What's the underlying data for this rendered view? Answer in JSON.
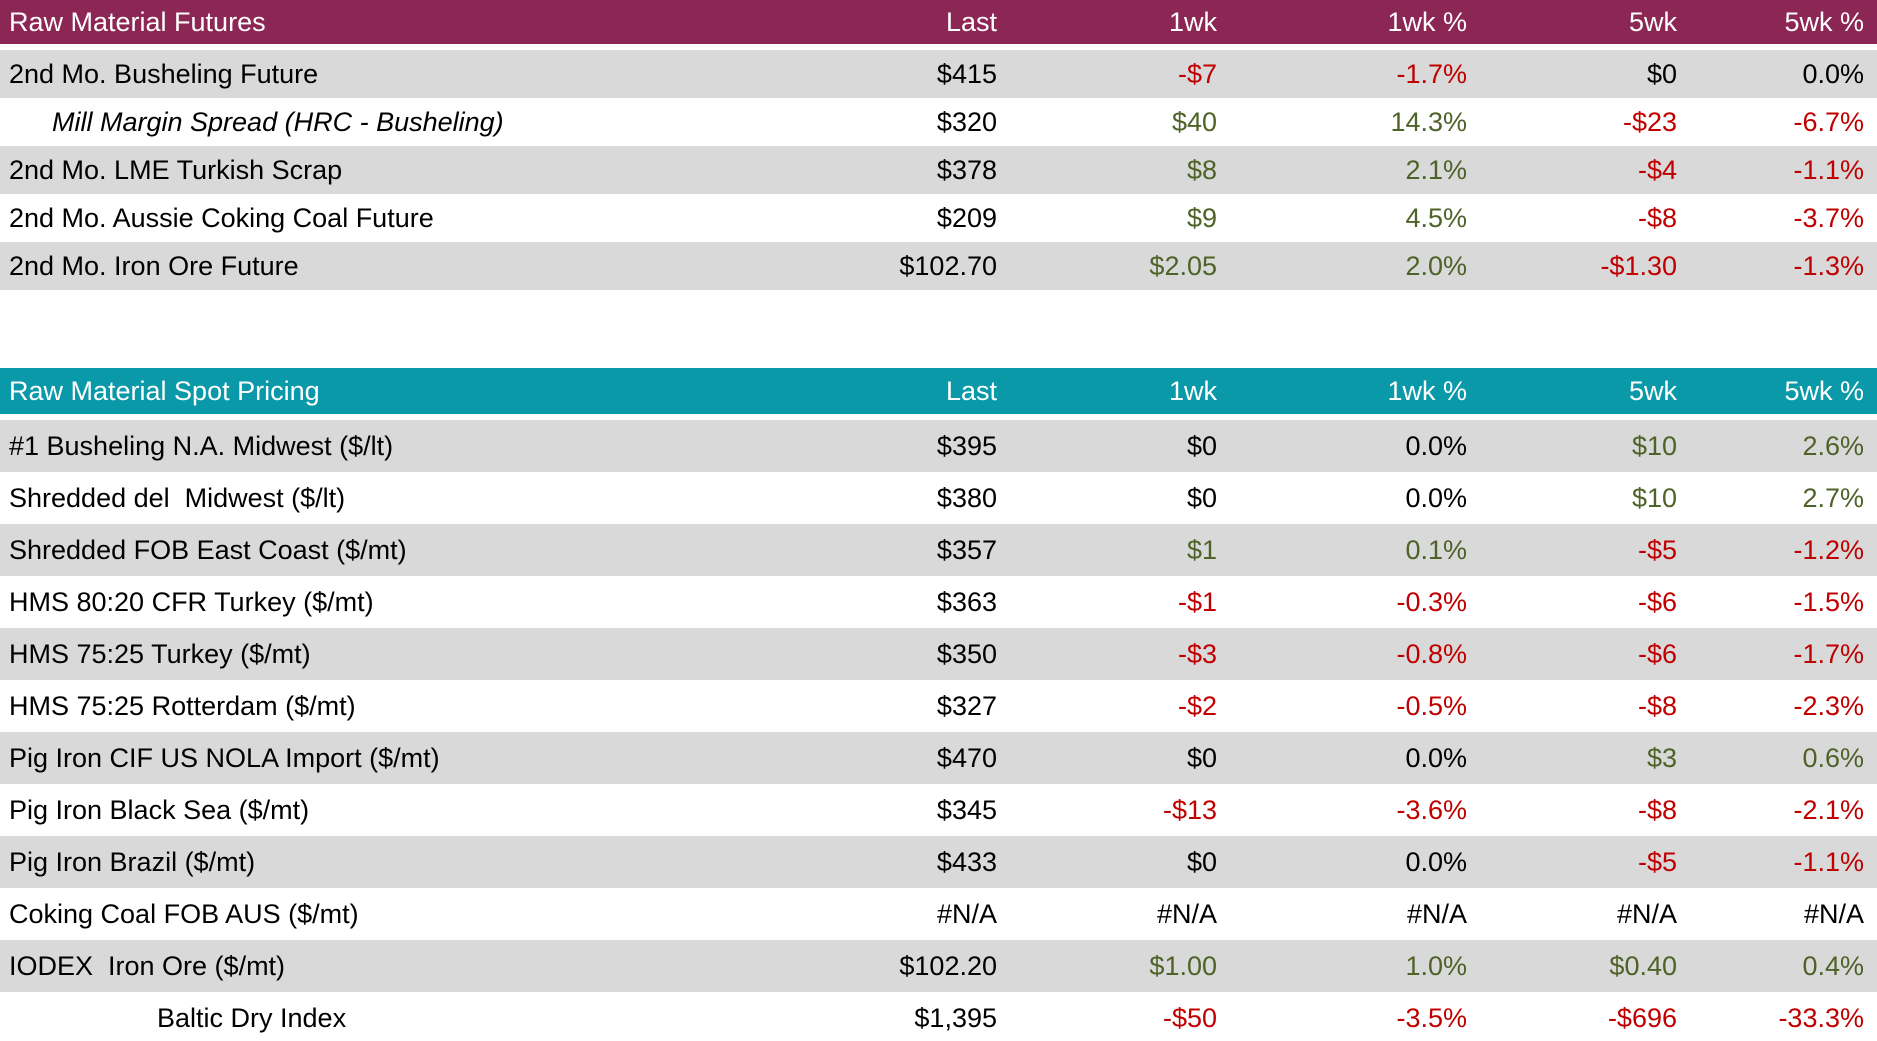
{
  "colors": {
    "futures_header_bg": "#8C2654",
    "spot_header_bg": "#0999A8",
    "shaded_row_bg": "#D9D9D9",
    "positive_text": "#4F6228",
    "negative_text": "#C00000",
    "neutral_text": "#000000",
    "header_text": "#FFFFFF"
  },
  "chart_data": [
    {
      "type": "table",
      "title": "Raw Material Futures",
      "columns": [
        "Last",
        "1wk",
        "1wk %",
        "5wk",
        "5wk %"
      ],
      "rows": [
        {
          "label": "2nd Mo. Busheling Future",
          "variant": "normal",
          "values": [
            "$415",
            "-$7",
            "-1.7%",
            "$0",
            "0.0%"
          ],
          "tones": [
            "flat",
            "down",
            "down",
            "flat",
            "flat"
          ]
        },
        {
          "label": "Mill Margin Spread (HRC - Busheling)",
          "variant": "indent-italic",
          "values": [
            "$320",
            "$40",
            "14.3%",
            "-$23",
            "-6.7%"
          ],
          "tones": [
            "flat",
            "up",
            "up",
            "down",
            "down"
          ]
        },
        {
          "label": "2nd Mo. LME Turkish Scrap",
          "variant": "normal",
          "values": [
            "$378",
            "$8",
            "2.1%",
            "-$4",
            "-1.1%"
          ],
          "tones": [
            "flat",
            "up",
            "up",
            "down",
            "down"
          ]
        },
        {
          "label": "2nd Mo. Aussie Coking Coal Future",
          "variant": "normal",
          "values": [
            "$209",
            "$9",
            "4.5%",
            "-$8",
            "-3.7%"
          ],
          "tones": [
            "flat",
            "up",
            "up",
            "down",
            "down"
          ]
        },
        {
          "label": "2nd Mo. Iron Ore Future",
          "variant": "normal",
          "values": [
            "$102.70",
            "$2.05",
            "2.0%",
            "-$1.30",
            "-1.3%"
          ],
          "tones": [
            "flat",
            "up",
            "up",
            "down",
            "down"
          ]
        }
      ]
    },
    {
      "type": "table",
      "title": "Raw Material Spot Pricing",
      "columns": [
        "Last",
        "1wk",
        "1wk %",
        "5wk",
        "5wk %"
      ],
      "rows": [
        {
          "label": "#1 Busheling N.A. Midwest ($/lt)",
          "variant": "normal",
          "values": [
            "$395",
            "$0",
            "0.0%",
            "$10",
            "2.6%"
          ],
          "tones": [
            "flat",
            "flat",
            "flat",
            "up",
            "up"
          ]
        },
        {
          "label": "Shredded del  Midwest ($/lt)",
          "variant": "normal",
          "values": [
            "$380",
            "$0",
            "0.0%",
            "$10",
            "2.7%"
          ],
          "tones": [
            "flat",
            "flat",
            "flat",
            "up",
            "up"
          ]
        },
        {
          "label": "Shredded FOB East Coast ($/mt)",
          "variant": "normal",
          "values": [
            "$357",
            "$1",
            "0.1%",
            "-$5",
            "-1.2%"
          ],
          "tones": [
            "flat",
            "up",
            "up",
            "down",
            "down"
          ]
        },
        {
          "label": "HMS 80:20 CFR Turkey ($/mt)",
          "variant": "normal",
          "values": [
            "$363",
            "-$1",
            "-0.3%",
            "-$6",
            "-1.5%"
          ],
          "tones": [
            "flat",
            "down",
            "down",
            "down",
            "down"
          ]
        },
        {
          "label": "HMS 75:25 Turkey ($/mt)",
          "variant": "normal",
          "values": [
            "$350",
            "-$3",
            "-0.8%",
            "-$6",
            "-1.7%"
          ],
          "tones": [
            "flat",
            "down",
            "down",
            "down",
            "down"
          ]
        },
        {
          "label": "HMS 75:25 Rotterdam ($/mt)",
          "variant": "normal",
          "values": [
            "$327",
            "-$2",
            "-0.5%",
            "-$8",
            "-2.3%"
          ],
          "tones": [
            "flat",
            "down",
            "down",
            "down",
            "down"
          ]
        },
        {
          "label": "Pig Iron CIF US NOLA Import ($/mt)",
          "variant": "normal",
          "values": [
            "$470",
            "$0",
            "0.0%",
            "$3",
            "0.6%"
          ],
          "tones": [
            "flat",
            "flat",
            "flat",
            "up",
            "up"
          ]
        },
        {
          "label": "Pig Iron Black Sea ($/mt)",
          "variant": "normal",
          "values": [
            "$345",
            "-$13",
            "-3.6%",
            "-$8",
            "-2.1%"
          ],
          "tones": [
            "flat",
            "down",
            "down",
            "down",
            "down"
          ]
        },
        {
          "label": "Pig Iron Brazil ($/mt)",
          "variant": "normal",
          "values": [
            "$433",
            "$0",
            "0.0%",
            "-$5",
            "-1.1%"
          ],
          "tones": [
            "flat",
            "flat",
            "flat",
            "down",
            "down"
          ]
        },
        {
          "label": "Coking Coal FOB AUS ($/mt)",
          "variant": "normal",
          "values": [
            "#N/A",
            "#N/A",
            "#N/A",
            "#N/A",
            "#N/A"
          ],
          "tones": [
            "flat",
            "flat",
            "flat",
            "flat",
            "flat"
          ]
        },
        {
          "label": "IODEX  Iron Ore ($/mt)",
          "variant": "normal",
          "values": [
            "$102.20",
            "$1.00",
            "1.0%",
            "$0.40",
            "0.4%"
          ],
          "tones": [
            "flat",
            "up",
            "up",
            "up",
            "up"
          ]
        },
        {
          "label": "Baltic Dry Index",
          "variant": "centered",
          "values": [
            "$1,395",
            "-$50",
            "-3.5%",
            "-$696",
            "-33.3%"
          ],
          "tones": [
            "flat",
            "down",
            "down",
            "down",
            "down"
          ]
        }
      ]
    }
  ]
}
